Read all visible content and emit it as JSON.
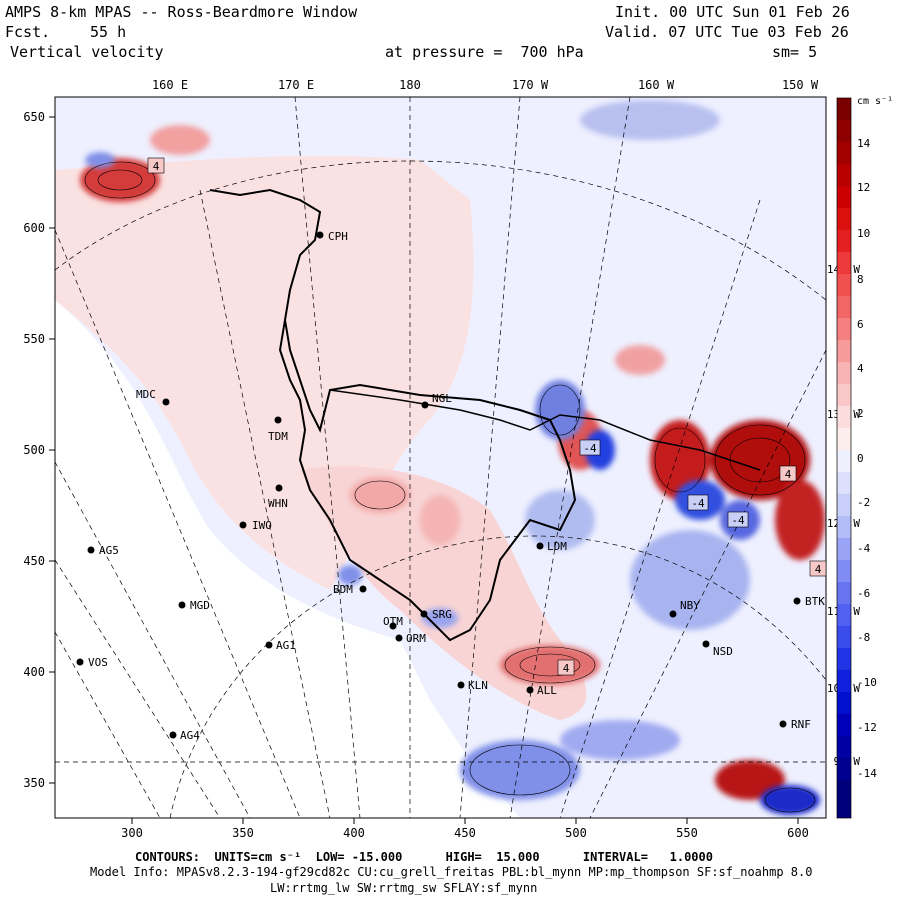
{
  "header": {
    "title": "AMPS 8-km MPAS -- Ross-Beardmore Window",
    "forecast_label": "Fcst.",
    "forecast_value": "55 h",
    "field": "Vertical velocity",
    "init": "Init. 00 UTC Sun 01 Feb 26",
    "valid": "Valid. 07 UTC Tue 03 Feb 26",
    "pressure": "at pressure =  700 hPa",
    "smoothing": "sm= 5"
  },
  "longitude_labels": [
    "160 E",
    "170 E",
    "180",
    "170 W",
    "160 W",
    "150 W"
  ],
  "right_lon_labels": [
    "140 W",
    "130 W",
    "120 W",
    "110 W",
    "100 W",
    "90 W"
  ],
  "y_ticks": [
    "650",
    "600",
    "550",
    "500",
    "450",
    "400",
    "350"
  ],
  "x_ticks": [
    "300",
    "350",
    "400",
    "450",
    "500",
    "550",
    "600"
  ],
  "colorbar": {
    "units": "cm s⁻¹",
    "labels": [
      "14",
      "12",
      "10",
      "8",
      "6",
      "4",
      "2",
      "0",
      "-2",
      "-4",
      "-6",
      "-8",
      "-10",
      "-12",
      "-14"
    ],
    "colors": [
      "#e8f0ff"
    ]
  },
  "stations": [
    {
      "name": "CPH"
    },
    {
      "name": "NGL"
    },
    {
      "name": "MDC"
    },
    {
      "name": "TDM"
    },
    {
      "name": "WHN"
    },
    {
      "name": "IWO"
    },
    {
      "name": "AG5"
    },
    {
      "name": "BDM"
    },
    {
      "name": "OTM"
    },
    {
      "name": "SRG"
    },
    {
      "name": "ORM"
    },
    {
      "name": "MGD"
    },
    {
      "name": "AG1"
    },
    {
      "name": "VOS"
    },
    {
      "name": "KLN"
    },
    {
      "name": "ALL"
    },
    {
      "name": "AG4"
    },
    {
      "name": "LDM"
    },
    {
      "name": "NBY"
    },
    {
      "name": "NSD"
    },
    {
      "name": "RNF"
    },
    {
      "name": "BTK"
    }
  ],
  "extrema_labels": [
    "4",
    "4",
    "4",
    "-4",
    "-4",
    "-4",
    "4"
  ],
  "footer": {
    "contours": "CONTOURS:  UNITS=cm s⁻¹  LOW= -15.000      HIGH=  15.000      INTERVAL=   1.0000",
    "model_info": "Model Info: MPASv8.2.3-194-gf29cd82c CU:cu_grell_freitas PBL:bl_mynn MP:mp_thompson SF:sf_noahmp 8.0",
    "model_info2": "LW:rrtmg_lw SW:rrtmg_sw SFLAY:sf_mynn"
  }
}
